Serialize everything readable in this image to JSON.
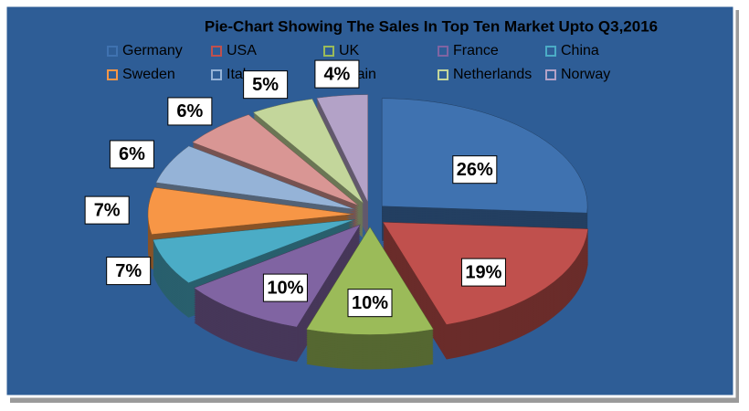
{
  "chart_data": {
    "type": "pie",
    "title": "Pie-Chart Showing The Sales In Top Ten Market Upto Q3,2016",
    "categories": [
      "Germany",
      "USA",
      "UK",
      "France",
      "China",
      "Sweden",
      "Italy",
      "Spain",
      "Netherlands",
      "Norway"
    ],
    "values": [
      26,
      19,
      10,
      10,
      7,
      7,
      6,
      6,
      5,
      4
    ],
    "value_labels": [
      "26%",
      "19%",
      "10%",
      "10%",
      "7%",
      "7%",
      "6%",
      "6%",
      "5%",
      "4%"
    ],
    "colors": [
      "#3f72b0",
      "#c0504d",
      "#9bbb59",
      "#8064a2",
      "#4bacc6",
      "#f79646",
      "#95b3d7",
      "#d99694",
      "#c3d69b",
      "#b3a2c7"
    ],
    "legend": "top"
  }
}
